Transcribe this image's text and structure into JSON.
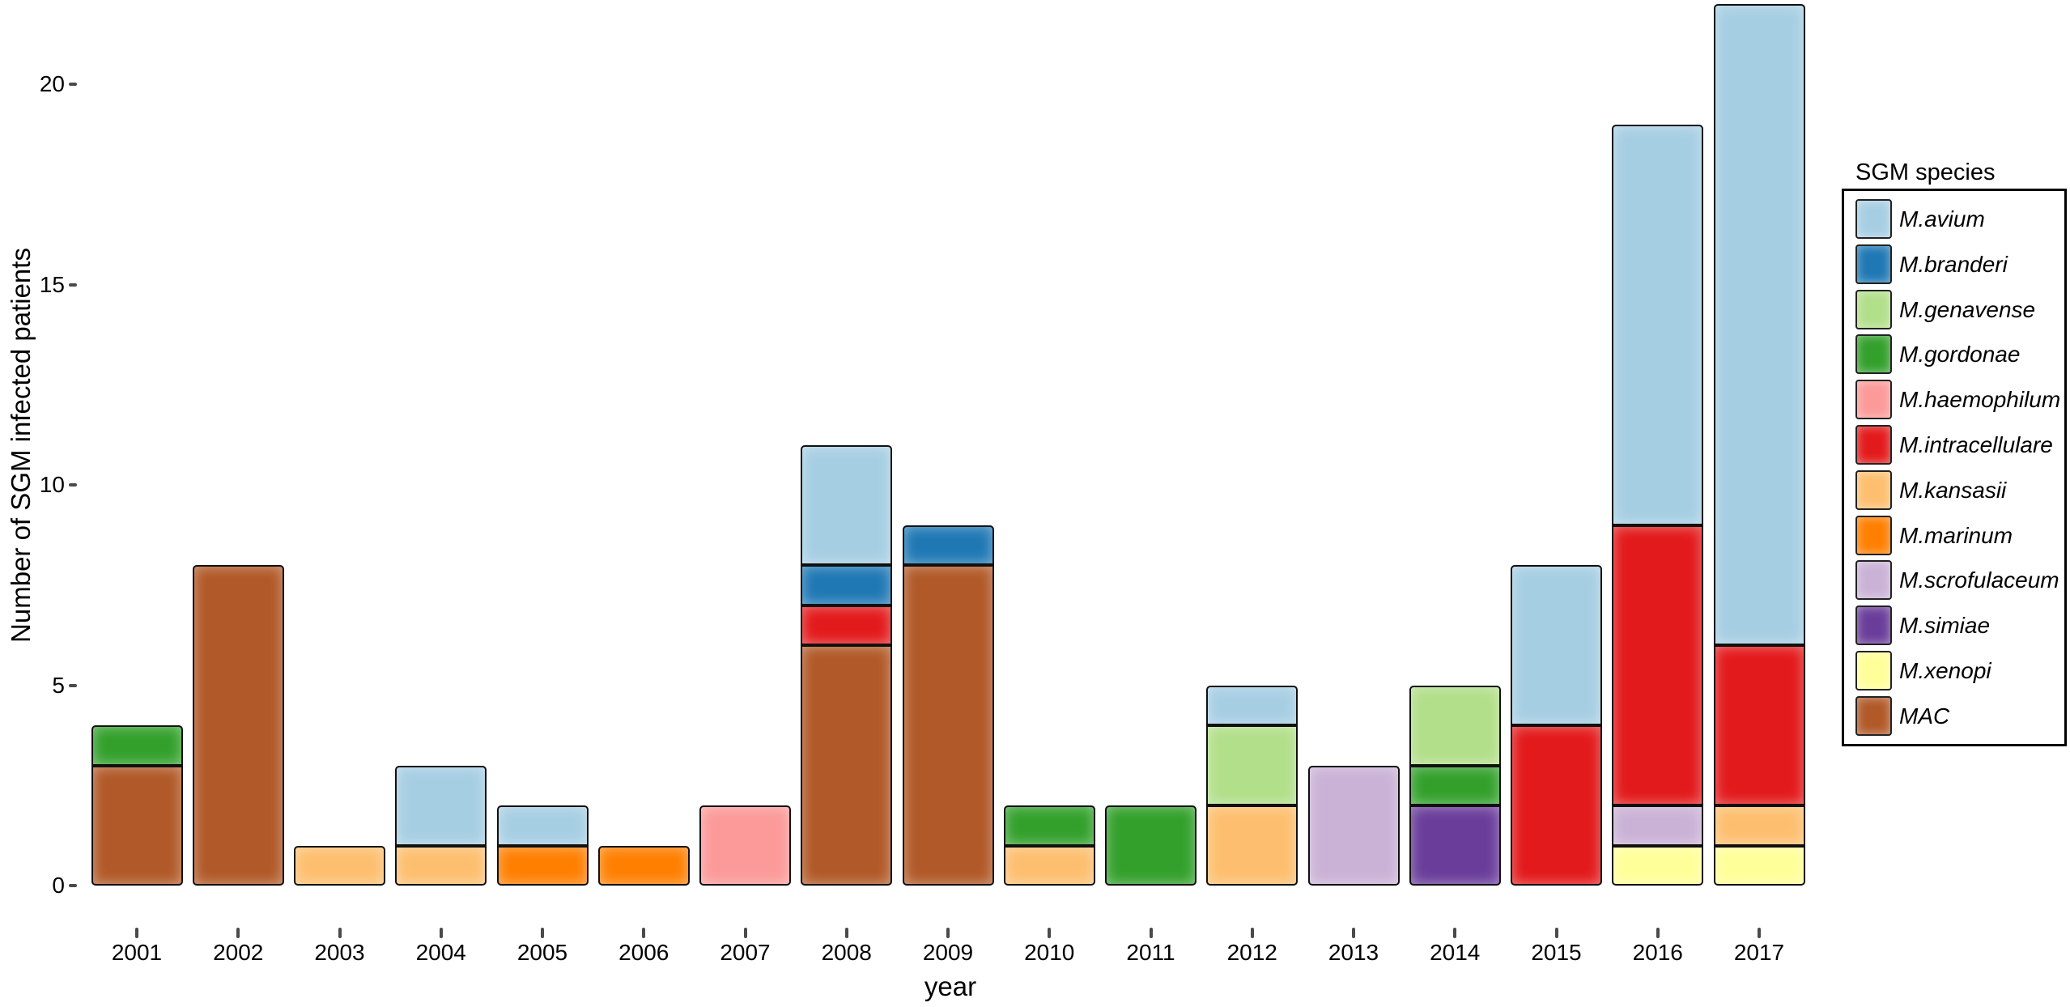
{
  "chart_data": {
    "type": "bar",
    "stacked": true,
    "title": "",
    "xlabel": "year",
    "ylabel": "Number of SGM infected patients",
    "legend_title": "SGM species",
    "legend_position": "right",
    "grid": false,
    "ylim": [
      0,
      22
    ],
    "yticks": [
      0,
      5,
      10,
      15,
      20
    ],
    "bar_border_color": "#111111",
    "categories": [
      "2001",
      "2002",
      "2003",
      "2004",
      "2005",
      "2006",
      "2007",
      "2008",
      "2009",
      "2010",
      "2011",
      "2012",
      "2013",
      "2014",
      "2015",
      "2016",
      "2017"
    ],
    "stack_order_note": "series are stacked bottom-to-top in reverse order of this legend list (MAC at bottom, M.avium on top)",
    "series": [
      {
        "name": "M.avium",
        "color": "#a6cee3",
        "values": [
          0,
          0,
          0,
          2,
          1,
          0,
          0,
          3,
          0,
          0,
          0,
          1,
          0,
          0,
          4,
          10,
          16
        ]
      },
      {
        "name": "M.branderi",
        "color": "#1f78b4",
        "values": [
          0,
          0,
          0,
          0,
          0,
          0,
          0,
          1,
          1,
          0,
          0,
          0,
          0,
          0,
          0,
          0,
          0
        ]
      },
      {
        "name": "M.genavense",
        "color": "#b2df8a",
        "values": [
          0,
          0,
          0,
          0,
          0,
          0,
          0,
          0,
          0,
          0,
          0,
          2,
          0,
          2,
          0,
          0,
          0
        ]
      },
      {
        "name": "M.gordonae",
        "color": "#33a02c",
        "values": [
          1,
          0,
          0,
          0,
          0,
          0,
          0,
          0,
          0,
          1,
          2,
          0,
          0,
          1,
          0,
          0,
          0
        ]
      },
      {
        "name": "M.haemophilum",
        "color": "#fb9a99",
        "values": [
          0,
          0,
          0,
          0,
          0,
          0,
          2,
          0,
          0,
          0,
          0,
          0,
          0,
          0,
          0,
          0,
          0
        ]
      },
      {
        "name": "M.intracellulare",
        "color": "#e31a1c",
        "values": [
          0,
          0,
          0,
          0,
          0,
          0,
          0,
          1,
          0,
          0,
          0,
          0,
          0,
          0,
          4,
          7,
          4
        ]
      },
      {
        "name": "M.kansasii",
        "color": "#fdbf6f",
        "values": [
          0,
          0,
          1,
          1,
          0,
          0,
          0,
          0,
          0,
          1,
          0,
          2,
          0,
          0,
          0,
          0,
          1
        ]
      },
      {
        "name": "M.marinum",
        "color": "#ff7f00",
        "values": [
          0,
          0,
          0,
          0,
          1,
          1,
          0,
          0,
          0,
          0,
          0,
          0,
          0,
          0,
          0,
          0,
          0
        ]
      },
      {
        "name": "M.scrofulaceum",
        "color": "#cab2d6",
        "values": [
          0,
          0,
          0,
          0,
          0,
          0,
          0,
          0,
          0,
          0,
          0,
          0,
          3,
          0,
          0,
          1,
          0
        ]
      },
      {
        "name": "M.simiae",
        "color": "#6a3d9a",
        "values": [
          0,
          0,
          0,
          0,
          0,
          0,
          0,
          0,
          0,
          0,
          0,
          0,
          0,
          2,
          0,
          0,
          0
        ]
      },
      {
        "name": "M.xenopi",
        "color": "#ffff99",
        "values": [
          0,
          0,
          0,
          0,
          0,
          0,
          0,
          0,
          0,
          0,
          0,
          0,
          0,
          0,
          0,
          1,
          1
        ]
      },
      {
        "name": "MAC",
        "color": "#b15928",
        "values": [
          3,
          8,
          0,
          0,
          0,
          0,
          0,
          6,
          8,
          0,
          0,
          0,
          0,
          0,
          0,
          0,
          0
        ]
      }
    ],
    "totals_by_year": [
      4,
      8,
      1,
      3,
      2,
      1,
      2,
      11,
      9,
      2,
      2,
      5,
      3,
      5,
      8,
      19,
      22
    ]
  }
}
